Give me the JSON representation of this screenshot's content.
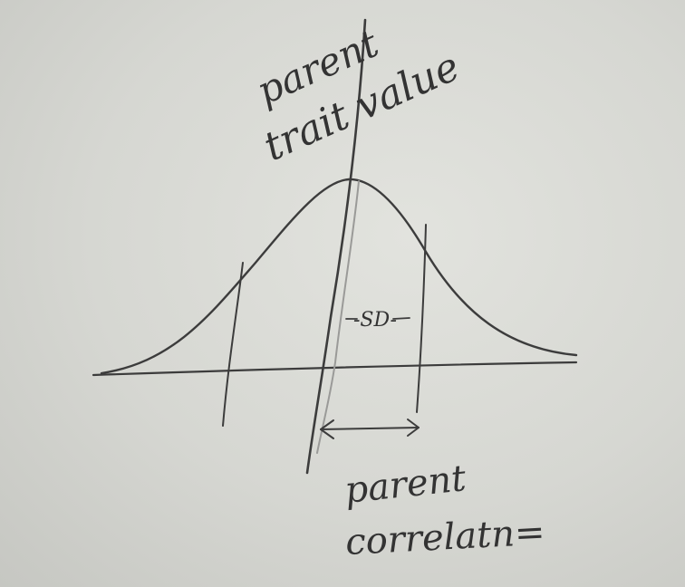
{
  "labels": {
    "top_line1": "parent",
    "top_line2": "trait value",
    "sd": "-SD-",
    "bottom_line1": "parent",
    "bottom_line2": "correlatn="
  },
  "colors": {
    "paper": "#dcddd8",
    "ink": "#3c3c3c",
    "pencil": "#9a9a98"
  }
}
